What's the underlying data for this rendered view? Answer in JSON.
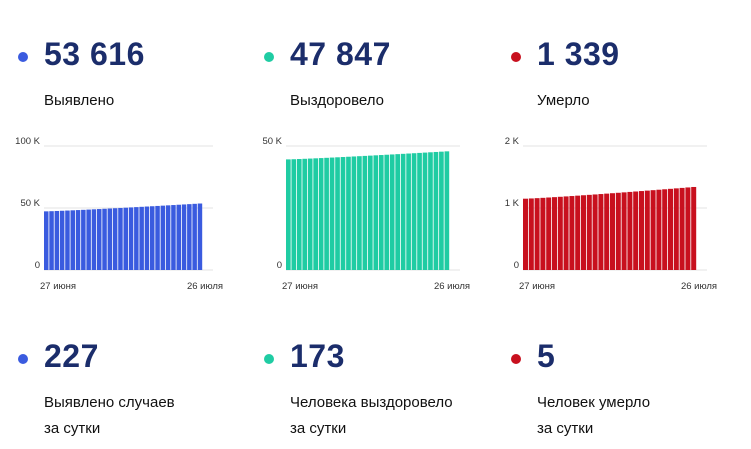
{
  "cards": [
    {
      "total": "53 616",
      "total_label": "Выявлено",
      "daily": "227",
      "daily_label_1": "Выявлено случаев",
      "daily_label_2": "за сутки",
      "color": "#3a5bdf"
    },
    {
      "total": "47 847",
      "total_label": "Выздоровело",
      "daily": "173",
      "daily_label_1": "Человека выздоровело",
      "daily_label_2": "за сутки",
      "color": "#1fcca3"
    },
    {
      "total": "1 339",
      "total_label": "Умерло",
      "daily": "5",
      "daily_label_1": "Человек умерло",
      "daily_label_2": "за сутки",
      "color": "#c8101e"
    }
  ],
  "chart_data": [
    {
      "type": "bar",
      "x_start_label": "27 июня",
      "x_end_label": "26 июля",
      "y_ticks": [
        "100 K",
        "50 K",
        "0"
      ],
      "y_tick_values": [
        100000,
        50000,
        0
      ],
      "ylim": [
        0,
        100000
      ],
      "grid": true,
      "color": "#3a5bdf",
      "start_value": 47300,
      "end_value": 53616,
      "num_bars": 30
    },
    {
      "type": "bar",
      "x_start_label": "27 июня",
      "x_end_label": "26 июля",
      "y_ticks": [
        "50 K",
        "0"
      ],
      "y_tick_values": [
        50000,
        0
      ],
      "ylim": [
        0,
        50000
      ],
      "grid": true,
      "color": "#1fcca3",
      "start_value": 44600,
      "end_value": 47847,
      "num_bars": 30
    },
    {
      "type": "bar",
      "x_start_label": "27 июня",
      "x_end_label": "26 июля",
      "y_ticks": [
        "2 K",
        "1 K",
        "0"
      ],
      "y_tick_values": [
        2000,
        1000,
        0
      ],
      "ylim": [
        0,
        2000
      ],
      "grid": true,
      "color": "#c8101e",
      "start_value": 1150,
      "end_value": 1339,
      "num_bars": 30
    }
  ]
}
